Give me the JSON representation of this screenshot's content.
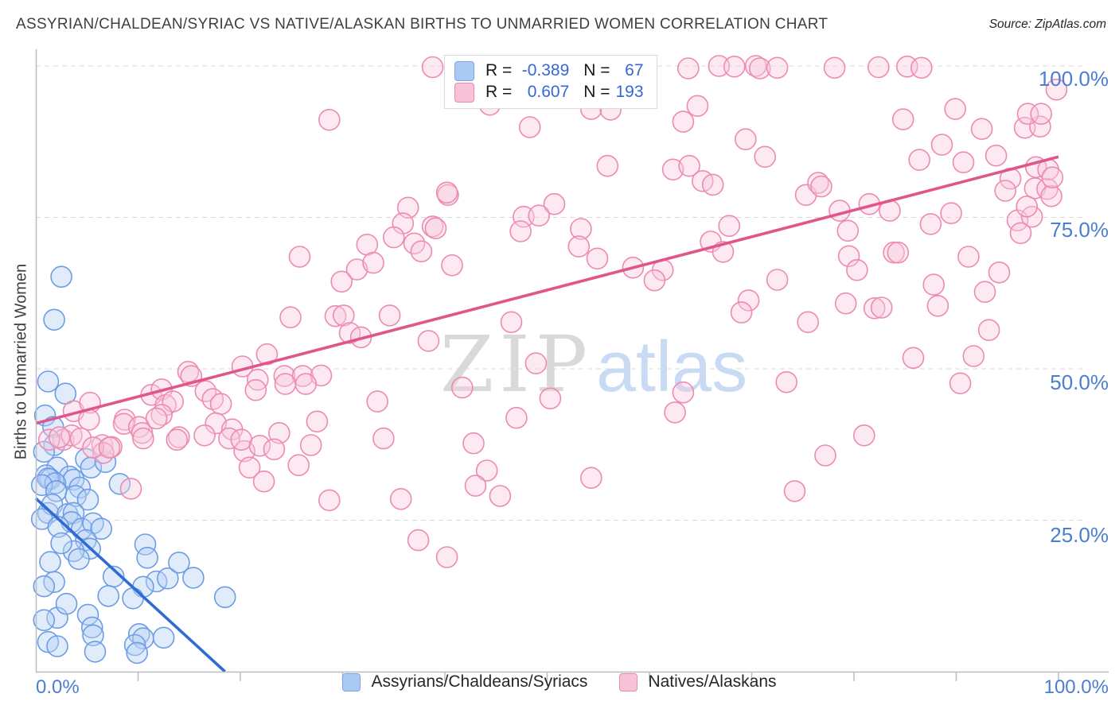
{
  "header": {
    "title": "ASSYRIAN/CHALDEAN/SYRIAC VS NATIVE/ALASKAN BIRTHS TO UNMARRIED WOMEN CORRELATION CHART",
    "source": "Source: ZipAtlas.com"
  },
  "watermark": {
    "zip": "ZIP",
    "atlas": "atlas"
  },
  "correlation_legend": {
    "rows": [
      {
        "series": "Assyrians/Chaldeans/Syriacs",
        "r_label": "R =",
        "r_value": "-0.389",
        "n_label": "N =",
        "n_value": "67"
      },
      {
        "series": "Natives/Alaskans",
        "r_label": "R =",
        "r_value": "0.607",
        "n_label": "N =",
        "n_value": "193"
      }
    ]
  },
  "axes": {
    "y_label": "Births to Unmarried Women",
    "y_tick_labels": [
      "100.0%",
      "75.0%",
      "50.0%",
      "25.0%"
    ],
    "x_min_label": "0.0%",
    "x_max_label": "100.0%"
  },
  "series_legend": [
    {
      "label": "Assyrians/Chaldeans/Syriacs"
    },
    {
      "label": "Natives/Alaskans"
    }
  ],
  "colors": {
    "tick_label_blue": "#4a7ed2",
    "grid": "#d9d9d9",
    "axis": "#b9bdc1",
    "blue_point_stroke": "#6d9ce6",
    "blue_point_fill": "#b8d1f5",
    "blue_trend": "#2e6bd4",
    "pink_point_stroke": "#ee8ab0",
    "pink_point_fill": "#f9cadd",
    "pink_trend": "#e0568b"
  },
  "chart_data": {
    "type": "scatter",
    "title": "Assyrian/Chaldean/Syriac vs Native/Alaskan Births to Unmarried Women",
    "xlabel": "",
    "ylabel": "Births to Unmarried Women",
    "xlim": [
      0,
      100
    ],
    "ylim": [
      0,
      100
    ],
    "grid": "dashed horizontal at 25/50/75/100",
    "y_gridlines": [
      100,
      75,
      50,
      25
    ],
    "x_tick_values": [
      10,
      20,
      30,
      40,
      50,
      60,
      70,
      80,
      90,
      100
    ],
    "style": {
      "grid": "#d9d9d9",
      "axis": "#b9bdc1"
    },
    "series": [
      {
        "name": "Assyrians/Chaldeans/Syriacs",
        "r": -0.389,
        "n": 67,
        "stroke": "#6d9ce6",
        "fill": "#b8d1f5",
        "point_name": "blue-scatter-point",
        "points": [
          [
            2.5,
            65.2
          ],
          [
            1.8,
            58.1
          ],
          [
            1.2,
            47.9
          ],
          [
            2.9,
            45.9
          ],
          [
            0.9,
            42.3
          ],
          [
            1.7,
            40.4
          ],
          [
            1.8,
            37.4
          ],
          [
            0.8,
            36.3
          ],
          [
            2.1,
            33.7
          ],
          [
            1.0,
            32.4
          ],
          [
            1.4,
            31.8
          ],
          [
            3.3,
            32.2
          ],
          [
            4.9,
            35.1
          ],
          [
            5.4,
            33.7
          ],
          [
            3.7,
            31.7
          ],
          [
            4.3,
            30.4
          ],
          [
            1.2,
            31.9
          ],
          [
            1.9,
            31.1
          ],
          [
            0.6,
            30.8
          ],
          [
            2.0,
            29.8
          ],
          [
            3.9,
            29.0
          ],
          [
            5.1,
            28.4
          ],
          [
            1.2,
            26.2
          ],
          [
            1.6,
            27.6
          ],
          [
            0.6,
            25.2
          ],
          [
            3.1,
            26.0
          ],
          [
            3.7,
            26.2
          ],
          [
            3.5,
            24.7
          ],
          [
            2.2,
            23.9
          ],
          [
            4.5,
            23.6
          ],
          [
            5.6,
            24.5
          ],
          [
            6.4,
            23.6
          ],
          [
            4.9,
            21.7
          ],
          [
            5.3,
            20.3
          ],
          [
            3.7,
            19.9
          ],
          [
            4.2,
            18.6
          ],
          [
            1.4,
            18.1
          ],
          [
            1.8,
            14.8
          ],
          [
            0.8,
            14.1
          ],
          [
            7.6,
            15.7
          ],
          [
            10.7,
            21.0
          ],
          [
            11.8,
            14.9
          ],
          [
            12.9,
            15.4
          ],
          [
            15.4,
            15.5
          ],
          [
            10.5,
            14.0
          ],
          [
            5.1,
            9.4
          ],
          [
            5.5,
            7.3
          ],
          [
            2.1,
            8.9
          ],
          [
            0.8,
            8.5
          ],
          [
            1.2,
            4.9
          ],
          [
            2.1,
            4.2
          ],
          [
            5.6,
            6.0
          ],
          [
            5.8,
            3.3
          ],
          [
            7.1,
            12.5
          ],
          [
            9.5,
            12.1
          ],
          [
            10.1,
            6.2
          ],
          [
            10.5,
            5.5
          ],
          [
            9.7,
            4.4
          ],
          [
            9.9,
            3.1
          ],
          [
            12.5,
            5.6
          ],
          [
            10.9,
            18.8
          ],
          [
            14.0,
            18.0
          ],
          [
            18.5,
            12.3
          ],
          [
            8.2,
            31.0
          ],
          [
            6.8,
            34.6
          ],
          [
            2.5,
            21.2
          ],
          [
            3.0,
            11.2
          ]
        ]
      },
      {
        "name": "Natives/Alaskans",
        "r": 0.607,
        "n": 193,
        "stroke": "#ee8ab0",
        "fill": "#f9cadd",
        "point_name": "pink-scatter-point",
        "points": [
          [
            38.8,
            99.8
          ],
          [
            52.4,
            100.0
          ],
          [
            59.5,
            99.8
          ],
          [
            63.8,
            99.6
          ],
          [
            66.8,
            100.0
          ],
          [
            68.3,
            99.9
          ],
          [
            70.4,
            100.0
          ],
          [
            70.8,
            99.6
          ],
          [
            72.5,
            99.7
          ],
          [
            78.1,
            99.7
          ],
          [
            82.4,
            99.8
          ],
          [
            85.2,
            99.9
          ],
          [
            86.6,
            99.7
          ],
          [
            44.4,
            93.6
          ],
          [
            28.7,
            91.1
          ],
          [
            48.3,
            89.9
          ],
          [
            54.3,
            92.9
          ],
          [
            56.2,
            92.8
          ],
          [
            58.4,
            97.4
          ],
          [
            64.7,
            93.4
          ],
          [
            63.3,
            90.8
          ],
          [
            69.4,
            87.9
          ],
          [
            71.3,
            85.0
          ],
          [
            84.8,
            91.2
          ],
          [
            89.9,
            92.9
          ],
          [
            92.5,
            89.6
          ],
          [
            96.7,
            89.8
          ],
          [
            98.2,
            90.0
          ],
          [
            99.8,
            96.1
          ],
          [
            97.0,
            92.1
          ],
          [
            98.3,
            92.1
          ],
          [
            88.6,
            87.0
          ],
          [
            55.9,
            83.5
          ],
          [
            62.3,
            82.9
          ],
          [
            63.9,
            83.5
          ],
          [
            65.2,
            81.0
          ],
          [
            66.2,
            80.4
          ],
          [
            75.3,
            78.7
          ],
          [
            76.5,
            80.7
          ],
          [
            76.8,
            80.1
          ],
          [
            78.6,
            76.1
          ],
          [
            86.4,
            84.5
          ],
          [
            90.7,
            84.1
          ],
          [
            93.9,
            85.2
          ],
          [
            95.3,
            81.4
          ],
          [
            94.8,
            79.4
          ],
          [
            97.7,
            79.8
          ],
          [
            98.9,
            79.7
          ],
          [
            99.3,
            78.5
          ],
          [
            97.8,
            83.3
          ],
          [
            99.0,
            82.9
          ],
          [
            99.4,
            81.6
          ],
          [
            40.3,
            78.7
          ],
          [
            40.2,
            79.1
          ],
          [
            50.7,
            77.2
          ],
          [
            36.4,
            76.6
          ],
          [
            47.7,
            75.1
          ],
          [
            49.2,
            75.3
          ],
          [
            81.5,
            77.2
          ],
          [
            83.5,
            76.1
          ],
          [
            89.5,
            75.7
          ],
          [
            87.5,
            73.9
          ],
          [
            96.0,
            74.5
          ],
          [
            97.4,
            75.1
          ],
          [
            96.3,
            72.4
          ],
          [
            96.9,
            76.8
          ],
          [
            53.3,
            73.1
          ],
          [
            53.1,
            70.2
          ],
          [
            54.9,
            68.2
          ],
          [
            58.4,
            66.7
          ],
          [
            61.3,
            66.3
          ],
          [
            60.5,
            64.6
          ],
          [
            67.8,
            73.6
          ],
          [
            66.0,
            71.0
          ],
          [
            67.2,
            69.3
          ],
          [
            72.5,
            64.7
          ],
          [
            79.4,
            72.8
          ],
          [
            79.5,
            68.6
          ],
          [
            83.9,
            69.2
          ],
          [
            84.3,
            69.2
          ],
          [
            80.3,
            66.3
          ],
          [
            91.2,
            68.5
          ],
          [
            94.2,
            65.9
          ],
          [
            35.9,
            74.0
          ],
          [
            38.8,
            73.5
          ],
          [
            35.0,
            71.7
          ],
          [
            37.0,
            70.7
          ],
          [
            37.7,
            69.4
          ],
          [
            32.4,
            70.5
          ],
          [
            25.8,
            68.5
          ],
          [
            31.4,
            66.4
          ],
          [
            29.9,
            64.4
          ],
          [
            40.7,
            67.1
          ],
          [
            47.4,
            72.7
          ],
          [
            39.1,
            73.2
          ],
          [
            33.0,
            67.5
          ],
          [
            24.9,
            58.5
          ],
          [
            29.3,
            58.7
          ],
          [
            30.1,
            58.8
          ],
          [
            34.6,
            58.8
          ],
          [
            30.7,
            55.9
          ],
          [
            31.8,
            55.2
          ],
          [
            38.4,
            54.6
          ],
          [
            46.5,
            57.7
          ],
          [
            48.9,
            50.9
          ],
          [
            69.7,
            61.3
          ],
          [
            69.0,
            59.3
          ],
          [
            79.2,
            60.8
          ],
          [
            75.5,
            57.7
          ],
          [
            87.8,
            63.9
          ],
          [
            92.8,
            62.7
          ],
          [
            88.2,
            60.4
          ],
          [
            82.0,
            60.0
          ],
          [
            82.7,
            60.1
          ],
          [
            93.2,
            56.4
          ],
          [
            85.8,
            51.8
          ],
          [
            91.7,
            52.1
          ],
          [
            22.6,
            52.4
          ],
          [
            20.2,
            50.4
          ],
          [
            24.3,
            48.8
          ],
          [
            26.1,
            48.8
          ],
          [
            27.9,
            48.9
          ],
          [
            21.7,
            48.2
          ],
          [
            21.5,
            46.5
          ],
          [
            24.4,
            47.5
          ],
          [
            26.4,
            47.5
          ],
          [
            33.4,
            44.6
          ],
          [
            41.7,
            46.9
          ],
          [
            50.3,
            45.1
          ],
          [
            62.5,
            42.8
          ],
          [
            63.3,
            46.1
          ],
          [
            73.4,
            47.8
          ],
          [
            90.4,
            47.6
          ],
          [
            14.9,
            49.5
          ],
          [
            15.2,
            48.8
          ],
          [
            16.6,
            46.3
          ],
          [
            17.3,
            45.0
          ],
          [
            18.1,
            44.2
          ],
          [
            11.3,
            45.7
          ],
          [
            12.3,
            46.6
          ],
          [
            12.7,
            44.0
          ],
          [
            13.4,
            44.6
          ],
          [
            12.3,
            42.4
          ],
          [
            3.7,
            43.0
          ],
          [
            5.3,
            44.4
          ],
          [
            5.2,
            41.6
          ],
          [
            8.7,
            41.6
          ],
          [
            8.6,
            40.9
          ],
          [
            10.1,
            40.4
          ],
          [
            10.4,
            39.4
          ],
          [
            17.6,
            41.0
          ],
          [
            11.8,
            41.8
          ],
          [
            2.7,
            38.3
          ],
          [
            3.5,
            39.0
          ],
          [
            4.4,
            38.5
          ],
          [
            6.5,
            37.4
          ],
          [
            7.4,
            37.1
          ],
          [
            6.6,
            36.1
          ],
          [
            14.0,
            38.7
          ],
          [
            16.5,
            39.0
          ],
          [
            19.2,
            40.0
          ],
          [
            1.3,
            38.3
          ],
          [
            2.3,
            38.7
          ],
          [
            5.6,
            37.0
          ],
          [
            7.2,
            37.0
          ],
          [
            10.5,
            38.5
          ],
          [
            13.8,
            38.3
          ],
          [
            18.9,
            38.5
          ],
          [
            20.4,
            36.4
          ],
          [
            23.8,
            39.4
          ],
          [
            20.1,
            38.3
          ],
          [
            21.9,
            37.3
          ],
          [
            23.3,
            36.7
          ],
          [
            26.9,
            37.4
          ],
          [
            27.5,
            41.3
          ],
          [
            34.0,
            38.5
          ],
          [
            42.8,
            37.7
          ],
          [
            47.0,
            41.9
          ],
          [
            81.0,
            39.0
          ],
          [
            77.2,
            35.7
          ],
          [
            25.7,
            34.1
          ],
          [
            20.9,
            33.7
          ],
          [
            22.3,
            31.4
          ],
          [
            28.7,
            28.3
          ],
          [
            35.7,
            28.5
          ],
          [
            44.1,
            33.2
          ],
          [
            43.0,
            30.7
          ],
          [
            45.4,
            29.0
          ],
          [
            54.3,
            32.0
          ],
          [
            74.2,
            29.8
          ],
          [
            9.3,
            30.2
          ],
          [
            37.4,
            21.7
          ],
          [
            40.2,
            18.9
          ]
        ]
      }
    ],
    "trendlines": [
      {
        "name": "blue-trendline",
        "series": "Assyrians/Chaldeans/Syriacs",
        "color": "#2e6bd4",
        "x1": 0,
        "y1": 28.6,
        "x2": 18.5,
        "y2": 0
      },
      {
        "name": "pink-trendline",
        "series": "Natives/Alaskans",
        "color": "#e0568b",
        "x1": 0,
        "y1": 41.0,
        "x2": 100,
        "y2": 85.0
      }
    ],
    "legend_position": "top-center (R/N box), bottom-center (series)"
  }
}
